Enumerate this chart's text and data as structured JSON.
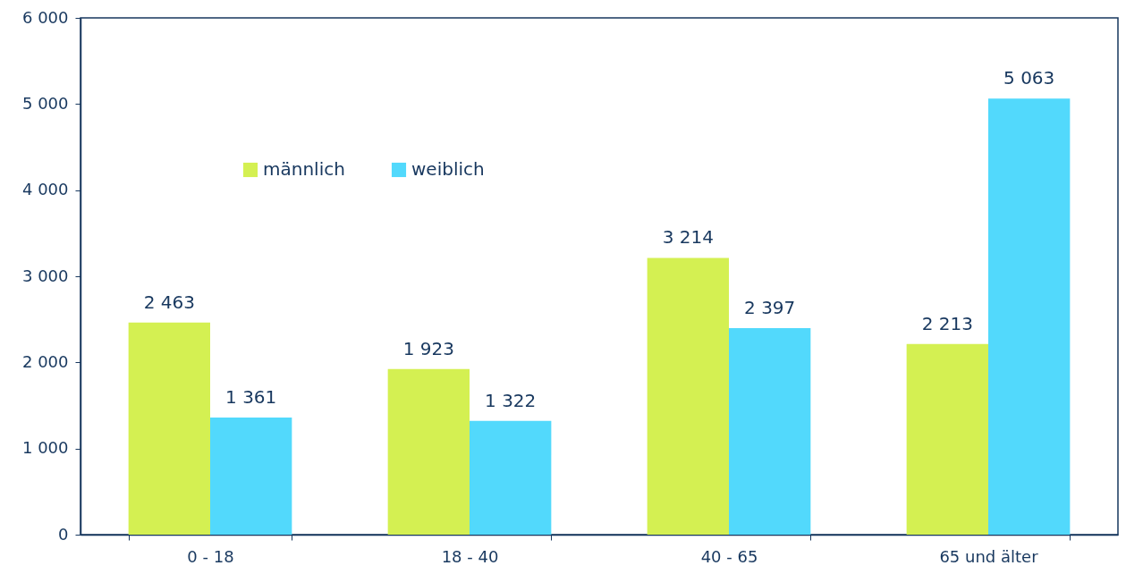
{
  "chart_data": {
    "type": "bar",
    "categories": [
      "0 - 18",
      "18 - 40",
      "40 - 65",
      "65 und älter"
    ],
    "series": [
      {
        "name": "männlich",
        "color": "#d4f052",
        "values": [
          2463,
          1923,
          3214,
          2213
        ],
        "value_labels": [
          "2 463",
          "1 923",
          "3 214",
          "2 213"
        ]
      },
      {
        "name": "weiblich",
        "color": "#52d9fc",
        "values": [
          1361,
          1322,
          2397,
          5063
        ],
        "value_labels": [
          "1 361",
          "1 322",
          "2 397",
          "5 063"
        ]
      }
    ],
    "ylim": [
      0,
      6000
    ],
    "yticks": [
      {
        "value": 0,
        "label": "0"
      },
      {
        "value": 1000,
        "label": "1 000"
      },
      {
        "value": 2000,
        "label": "2 000"
      },
      {
        "value": 3000,
        "label": "3 000"
      },
      {
        "value": 4000,
        "label": "4 000"
      },
      {
        "value": 5000,
        "label": "5 000"
      },
      {
        "value": 6000,
        "label": "6 000"
      }
    ],
    "grid": false,
    "legend": "top left"
  }
}
